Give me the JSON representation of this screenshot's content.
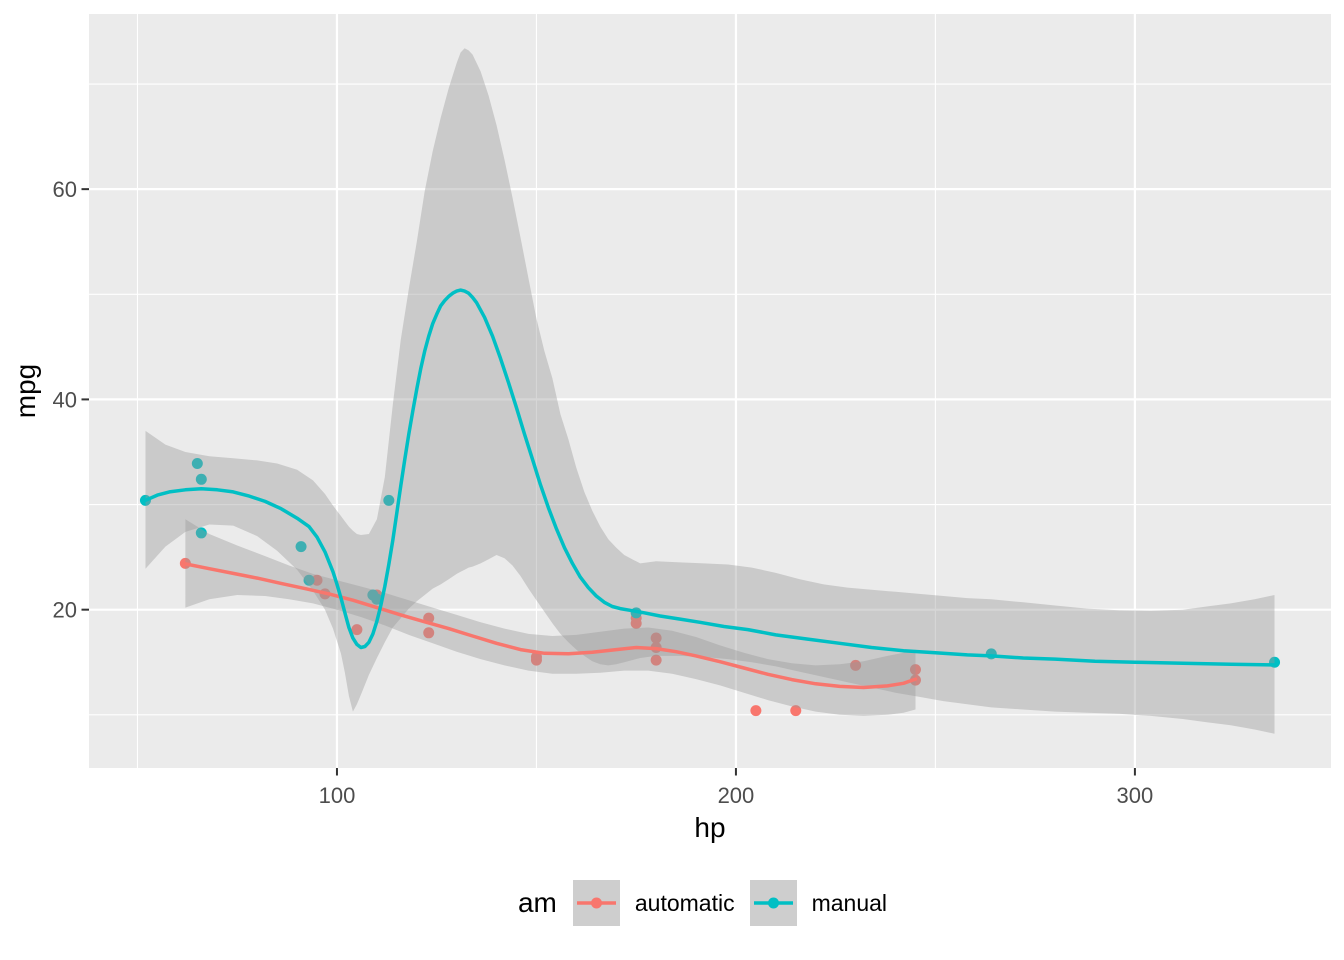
{
  "figure": {
    "background": "#FFFFFF"
  },
  "axes": {
    "x": {
      "title": "hp",
      "range": [
        37.85,
        349.15
      ],
      "ticks": [
        {
          "value": 100,
          "label": "100"
        },
        {
          "value": 200,
          "label": "200"
        },
        {
          "value": 300,
          "label": "300"
        }
      ],
      "minor_ticks": [
        50,
        150,
        250
      ]
    },
    "y": {
      "title": "mpg",
      "range": [
        4.94,
        76.66
      ],
      "ticks": [
        {
          "value": 20,
          "label": "20"
        },
        {
          "value": 40,
          "label": "40"
        },
        {
          "value": 60,
          "label": "60"
        }
      ],
      "minor_ticks": [
        10,
        30,
        50,
        70
      ]
    }
  },
  "legend": {
    "title": "am",
    "position": "bottom",
    "items": [
      {
        "label": "automatic",
        "color": "#F8766D"
      },
      {
        "label": "manual",
        "color": "#00BFC4"
      }
    ]
  },
  "style": {
    "panel_bg": "#EBEBEB",
    "grid_color": "#FFFFFF",
    "tick_label_color": "#4D4D4D",
    "tick_mark_color": "#333333",
    "ribbon_fill": "#999999",
    "ribbon_opacity": 0.4,
    "key_bg": "#CECECE",
    "point_radius": 5.5,
    "line_width": 3.5
  },
  "chart_data": {
    "type": "scatter",
    "smoother": "loess with confidence ribbon",
    "title": "",
    "xlabel": "hp",
    "ylabel": "mpg",
    "xlim": [
      37.85,
      349.15
    ],
    "ylim": [
      4.94,
      76.66
    ],
    "grid": true,
    "legend_position": "bottom",
    "series": [
      {
        "name": "automatic",
        "color": "#F8766D",
        "points": [
          [
            110,
            21.4
          ],
          [
            175,
            18.7
          ],
          [
            105,
            18.1
          ],
          [
            245,
            14.3
          ],
          [
            62,
            24.4
          ],
          [
            95,
            22.8
          ],
          [
            123,
            19.2
          ],
          [
            123,
            17.8
          ],
          [
            180,
            16.4
          ],
          [
            180,
            17.3
          ],
          [
            180,
            15.2
          ],
          [
            205,
            10.4
          ],
          [
            215,
            10.4
          ],
          [
            230,
            14.7
          ],
          [
            97,
            21.5
          ],
          [
            150,
            15.5
          ],
          [
            150,
            15.2
          ],
          [
            245,
            13.3
          ],
          [
            175,
            19.2
          ]
        ],
        "smooth": [
          [
            62,
            24.35
          ],
          [
            68,
            23.9
          ],
          [
            74,
            23.45
          ],
          [
            80,
            23.0
          ],
          [
            86,
            22.5
          ],
          [
            92,
            22.0
          ],
          [
            98,
            21.5
          ],
          [
            104,
            20.9
          ],
          [
            110,
            20.2
          ],
          [
            116,
            19.5
          ],
          [
            122,
            18.85
          ],
          [
            128,
            18.2
          ],
          [
            134,
            17.5
          ],
          [
            140,
            16.8
          ],
          [
            146,
            16.2
          ],
          [
            152,
            15.85
          ],
          [
            158,
            15.8
          ],
          [
            164,
            15.95
          ],
          [
            170,
            16.2
          ],
          [
            175,
            16.4
          ],
          [
            180,
            16.3
          ],
          [
            185,
            16.0
          ],
          [
            190,
            15.6
          ],
          [
            196,
            15.05
          ],
          [
            202,
            14.45
          ],
          [
            208,
            13.85
          ],
          [
            214,
            13.35
          ],
          [
            220,
            12.95
          ],
          [
            226,
            12.7
          ],
          [
            232,
            12.6
          ],
          [
            238,
            12.75
          ],
          [
            242,
            13.0
          ],
          [
            245,
            13.4
          ]
        ],
        "ribbon": [
          [
            62,
            20.2,
            28.6
          ],
          [
            68,
            21.0,
            27.2
          ],
          [
            75,
            21.4,
            26.1
          ],
          [
            82,
            21.3,
            25.1
          ],
          [
            88,
            21.0,
            24.2
          ],
          [
            94,
            20.6,
            23.4
          ],
          [
            100,
            20.0,
            22.8
          ],
          [
            106,
            19.3,
            22.2
          ],
          [
            112,
            18.5,
            21.6
          ],
          [
            118,
            17.6,
            20.9
          ],
          [
            124,
            16.8,
            20.2
          ],
          [
            130,
            16.0,
            19.5
          ],
          [
            136,
            15.3,
            18.8
          ],
          [
            142,
            14.7,
            18.2
          ],
          [
            148,
            14.2,
            17.7
          ],
          [
            154,
            13.9,
            17.5
          ],
          [
            160,
            13.9,
            17.6
          ],
          [
            166,
            14.0,
            17.9
          ],
          [
            172,
            14.2,
            18.2
          ],
          [
            178,
            14.2,
            18.3
          ],
          [
            184,
            13.9,
            18.0
          ],
          [
            190,
            13.4,
            17.4
          ],
          [
            196,
            12.8,
            16.6
          ],
          [
            202,
            12.1,
            15.9
          ],
          [
            208,
            11.4,
            15.3
          ],
          [
            214,
            10.8,
            14.9
          ],
          [
            220,
            10.3,
            14.7
          ],
          [
            226,
            10.0,
            14.8
          ],
          [
            232,
            9.9,
            15.1
          ],
          [
            238,
            10.0,
            15.6
          ],
          [
            242,
            10.2,
            15.9
          ],
          [
            245,
            10.5,
            16.2
          ]
        ]
      },
      {
        "name": "manual",
        "color": "#00BFC4",
        "points": [
          [
            110,
            21
          ],
          [
            110,
            21
          ],
          [
            93,
            22.8
          ],
          [
            66,
            32.4
          ],
          [
            52,
            30.4
          ],
          [
            65,
            33.9
          ],
          [
            66,
            27.3
          ],
          [
            91,
            26
          ],
          [
            113,
            30.4
          ],
          [
            264,
            15.8
          ],
          [
            175,
            19.7
          ],
          [
            335,
            15
          ],
          [
            109,
            21.4
          ]
        ],
        "smooth": [
          [
            52,
            30.4
          ],
          [
            55,
            30.9
          ],
          [
            58,
            31.2
          ],
          [
            62,
            31.4
          ],
          [
            66,
            31.5
          ],
          [
            70,
            31.4
          ],
          [
            74,
            31.2
          ],
          [
            78,
            30.8
          ],
          [
            82,
            30.3
          ],
          [
            86,
            29.6
          ],
          [
            90,
            28.7
          ],
          [
            93,
            27.9
          ],
          [
            95,
            26.9
          ],
          [
            97,
            25.5
          ],
          [
            99,
            23.6
          ],
          [
            100,
            22.4
          ],
          [
            101,
            21.1
          ],
          [
            102,
            19.7
          ],
          [
            103,
            18.3
          ],
          [
            104,
            17.3
          ],
          [
            105,
            16.7
          ],
          [
            106,
            16.4
          ],
          [
            107,
            16.5
          ],
          [
            108,
            16.9
          ],
          [
            109,
            17.7
          ],
          [
            110,
            18.9
          ],
          [
            111,
            20.4
          ],
          [
            112,
            22.2
          ],
          [
            113,
            24.3
          ],
          [
            114,
            26.6
          ],
          [
            115,
            29.2
          ],
          [
            116,
            31.8
          ],
          [
            117,
            34.3
          ],
          [
            118,
            36.7
          ],
          [
            119,
            38.9
          ],
          [
            120,
            41.0
          ],
          [
            121,
            42.9
          ],
          [
            122,
            44.6
          ],
          [
            123,
            46.0
          ],
          [
            124,
            47.2
          ],
          [
            125,
            48.1
          ],
          [
            126,
            48.9
          ],
          [
            127,
            49.4
          ],
          [
            128,
            49.8
          ],
          [
            129,
            50.1
          ],
          [
            130,
            50.3
          ],
          [
            131,
            50.4
          ],
          [
            132,
            50.3
          ],
          [
            133,
            50.1
          ],
          [
            134,
            49.7
          ],
          [
            135,
            49.2
          ],
          [
            137,
            47.8
          ],
          [
            139,
            46.0
          ],
          [
            141,
            43.9
          ],
          [
            143,
            41.6
          ],
          [
            145,
            39.2
          ],
          [
            147,
            36.7
          ],
          [
            149,
            34.3
          ],
          [
            151,
            31.9
          ],
          [
            153,
            29.7
          ],
          [
            155,
            27.7
          ],
          [
            157,
            25.9
          ],
          [
            159,
            24.4
          ],
          [
            161,
            23.1
          ],
          [
            163,
            22.1
          ],
          [
            165,
            21.3
          ],
          [
            167,
            20.7
          ],
          [
            169,
            20.3
          ],
          [
            171,
            20.1
          ],
          [
            174,
            19.9
          ],
          [
            177,
            19.7
          ],
          [
            181,
            19.4
          ],
          [
            186,
            19.1
          ],
          [
            191,
            18.8
          ],
          [
            197,
            18.4
          ],
          [
            203,
            18.1
          ],
          [
            210,
            17.6
          ],
          [
            218,
            17.2
          ],
          [
            226,
            16.8
          ],
          [
            234,
            16.4
          ],
          [
            242,
            16.1
          ],
          [
            250,
            15.9
          ],
          [
            258,
            15.7
          ],
          [
            264,
            15.6
          ],
          [
            272,
            15.4
          ],
          [
            280,
            15.3
          ],
          [
            290,
            15.1
          ],
          [
            300,
            15.0
          ],
          [
            312,
            14.9
          ],
          [
            324,
            14.8
          ],
          [
            335,
            14.75
          ]
        ],
        "ribbon": [
          [
            52,
            23.9,
            37.0
          ],
          [
            57,
            26.0,
            35.7
          ],
          [
            62,
            27.4,
            35.0
          ],
          [
            68,
            28.1,
            34.6
          ],
          [
            74,
            28.0,
            34.4
          ],
          [
            80,
            27.0,
            34.2
          ],
          [
            85,
            25.6,
            33.9
          ],
          [
            90,
            23.8,
            33.3
          ],
          [
            94,
            21.8,
            32.3
          ],
          [
            97,
            20.0,
            31.0
          ],
          [
            99,
            18.2,
            29.9
          ],
          [
            101,
            15.8,
            28.9
          ],
          [
            102,
            14.0,
            28.4
          ],
          [
            103,
            11.8,
            27.9
          ],
          [
            104,
            10.3,
            27.5
          ],
          [
            105,
            11.0,
            27.2
          ],
          [
            106,
            11.9,
            27.1
          ],
          [
            108,
            13.8,
            27.2
          ],
          [
            110,
            15.4,
            28.6
          ],
          [
            112,
            16.9,
            32.6
          ],
          [
            114,
            18.3,
            39.5
          ],
          [
            116,
            19.2,
            45.7
          ],
          [
            118,
            20.1,
            50.5
          ],
          [
            120,
            20.8,
            55.0
          ],
          [
            122,
            21.4,
            59.8
          ],
          [
            124,
            22.0,
            63.6
          ],
          [
            126,
            22.4,
            66.8
          ],
          [
            128,
            22.9,
            69.6
          ],
          [
            130,
            23.4,
            72.0
          ],
          [
            131,
            23.6,
            73.0
          ],
          [
            132,
            23.8,
            73.4
          ],
          [
            133,
            24.0,
            73.2
          ],
          [
            134,
            24.1,
            72.8
          ],
          [
            136,
            24.4,
            71.2
          ],
          [
            138,
            24.8,
            68.9
          ],
          [
            140,
            25.2,
            66.1
          ],
          [
            142,
            24.9,
            62.8
          ],
          [
            144,
            24.2,
            59.2
          ],
          [
            146,
            23.2,
            55.4
          ],
          [
            148,
            22.0,
            51.5
          ],
          [
            150,
            20.9,
            47.7
          ],
          [
            152,
            19.8,
            44.6
          ],
          [
            154,
            18.7,
            42.0
          ],
          [
            156,
            17.7,
            38.6
          ],
          [
            158,
            16.9,
            36.2
          ],
          [
            160,
            16.2,
            33.5
          ],
          [
            162,
            15.6,
            31.2
          ],
          [
            164,
            15.1,
            29.4
          ],
          [
            166,
            14.8,
            27.9
          ],
          [
            168,
            14.7,
            26.7
          ],
          [
            170,
            14.8,
            25.9
          ],
          [
            172,
            15.0,
            25.2
          ],
          [
            174,
            15.2,
            24.8
          ],
          [
            176,
            15.4,
            24.4
          ],
          [
            180,
            15.6,
            24.6
          ],
          [
            186,
            15.6,
            24.5
          ],
          [
            192,
            15.5,
            24.4
          ],
          [
            198,
            15.3,
            24.3
          ],
          [
            204,
            15.0,
            24.0
          ],
          [
            210,
            14.6,
            23.5
          ],
          [
            216,
            14.1,
            22.9
          ],
          [
            222,
            13.6,
            22.4
          ],
          [
            228,
            13.1,
            22.1
          ],
          [
            234,
            12.6,
            21.9
          ],
          [
            240,
            12.1,
            21.7
          ],
          [
            246,
            11.7,
            21.5
          ],
          [
            252,
            11.3,
            21.3
          ],
          [
            258,
            11.0,
            21.1
          ],
          [
            264,
            10.7,
            21.0
          ],
          [
            272,
            10.5,
            20.7
          ],
          [
            280,
            10.3,
            20.4
          ],
          [
            288,
            10.2,
            20.1
          ],
          [
            296,
            10.1,
            19.95
          ],
          [
            304,
            9.9,
            19.9
          ],
          [
            312,
            9.6,
            20.0
          ],
          [
            318,
            9.3,
            20.3
          ],
          [
            324,
            9.0,
            20.6
          ],
          [
            330,
            8.6,
            21.0
          ],
          [
            335,
            8.2,
            21.4
          ]
        ]
      }
    ]
  }
}
